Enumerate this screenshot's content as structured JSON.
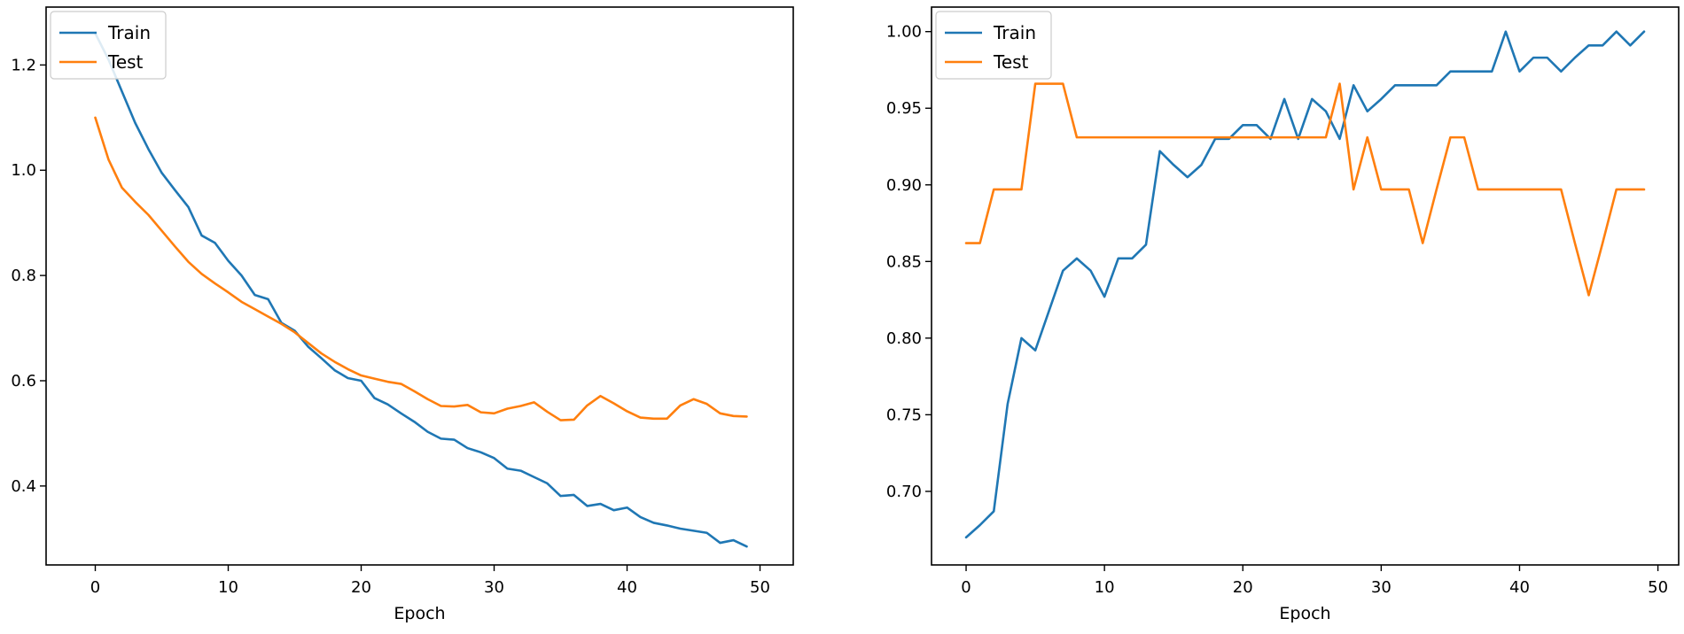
{
  "chart_data": [
    {
      "type": "line",
      "title": "",
      "xlabel": "Epoch",
      "ylabel": "",
      "xlim": [
        -3.7,
        52.5
      ],
      "ylim": [
        0.25,
        1.31
      ],
      "xticks": [
        0,
        10,
        20,
        30,
        40,
        50
      ],
      "yticks": [
        0.4,
        0.6,
        0.8,
        1.0,
        1.2
      ],
      "ytick_labels": [
        "0.4",
        "0.6",
        "0.8",
        "1.0",
        "1.2"
      ],
      "grid": false,
      "legend_position": "upper-left",
      "x": [
        0,
        1,
        2,
        3,
        4,
        5,
        6,
        7,
        8,
        9,
        10,
        11,
        12,
        13,
        14,
        15,
        16,
        17,
        18,
        19,
        20,
        21,
        22,
        23,
        24,
        25,
        26,
        27,
        28,
        29,
        30,
        31,
        32,
        33,
        34,
        35,
        36,
        37,
        38,
        39,
        40,
        41,
        42,
        43,
        44,
        45,
        46,
        47,
        48,
        49
      ],
      "series": [
        {
          "name": "Train",
          "color": "#1f77b4",
          "values": [
            1.26,
            1.21,
            1.15,
            1.09,
            1.04,
            0.995,
            0.962,
            0.93,
            0.876,
            0.862,
            0.828,
            0.8,
            0.763,
            0.755,
            0.71,
            0.695,
            0.665,
            0.643,
            0.62,
            0.605,
            0.6,
            0.567,
            0.555,
            0.538,
            0.522,
            0.503,
            0.49,
            0.488,
            0.472,
            0.464,
            0.453,
            0.433,
            0.429,
            0.417,
            0.405,
            0.381,
            0.383,
            0.362,
            0.366,
            0.354,
            0.359,
            0.341,
            0.33,
            0.325,
            0.319,
            0.315,
            0.311,
            0.292,
            0.297,
            0.285
          ]
        },
        {
          "name": "Test",
          "color": "#ff7f0e",
          "values": [
            1.1,
            1.02,
            0.967,
            0.94,
            0.915,
            0.885,
            0.855,
            0.826,
            0.803,
            0.785,
            0.768,
            0.75,
            0.736,
            0.722,
            0.708,
            0.692,
            0.672,
            0.652,
            0.636,
            0.622,
            0.61,
            0.604,
            0.598,
            0.594,
            0.58,
            0.565,
            0.552,
            0.551,
            0.554,
            0.54,
            0.538,
            0.547,
            0.552,
            0.559,
            0.541,
            0.525,
            0.526,
            0.553,
            0.571,
            0.557,
            0.542,
            0.53,
            0.528,
            0.528,
            0.553,
            0.565,
            0.556,
            0.538,
            0.533,
            0.532
          ]
        }
      ]
    },
    {
      "type": "line",
      "title": "",
      "xlabel": "Epoch",
      "ylabel": "",
      "xlim": [
        -2.5,
        51.5
      ],
      "ylim": [
        0.652,
        1.016
      ],
      "xticks": [
        0,
        10,
        20,
        30,
        40,
        50
      ],
      "yticks": [
        0.7,
        0.75,
        0.8,
        0.85,
        0.9,
        0.95,
        1.0
      ],
      "ytick_labels": [
        "0.70",
        "0.75",
        "0.80",
        "0.85",
        "0.90",
        "0.95",
        "1.00"
      ],
      "grid": false,
      "legend_position": "upper-left",
      "x": [
        0,
        1,
        2,
        3,
        4,
        5,
        6,
        7,
        8,
        9,
        10,
        11,
        12,
        13,
        14,
        15,
        16,
        17,
        18,
        19,
        20,
        21,
        22,
        23,
        24,
        25,
        26,
        27,
        28,
        29,
        30,
        31,
        32,
        33,
        34,
        35,
        36,
        37,
        38,
        39,
        40,
        41,
        42,
        43,
        44,
        45,
        46,
        47,
        48,
        49
      ],
      "series": [
        {
          "name": "Train",
          "color": "#1f77b4",
          "values": [
            0.67,
            0.678,
            0.687,
            0.757,
            0.8,
            0.792,
            0.818,
            0.844,
            0.852,
            0.844,
            0.827,
            0.852,
            0.852,
            0.861,
            0.922,
            0.913,
            0.905,
            0.913,
            0.93,
            0.93,
            0.939,
            0.939,
            0.93,
            0.956,
            0.93,
            0.956,
            0.948,
            0.93,
            0.965,
            0.948,
            0.956,
            0.965,
            0.965,
            0.965,
            0.965,
            0.974,
            0.974,
            0.974,
            0.974,
            1.0,
            0.974,
            0.983,
            0.983,
            0.974,
            0.983,
            0.991,
            0.991,
            1.0,
            0.991,
            1.0
          ]
        },
        {
          "name": "Test",
          "color": "#ff7f0e",
          "values": [
            0.862,
            0.862,
            0.897,
            0.897,
            0.897,
            0.966,
            0.966,
            0.966,
            0.931,
            0.931,
            0.931,
            0.931,
            0.931,
            0.931,
            0.931,
            0.931,
            0.931,
            0.931,
            0.931,
            0.931,
            0.931,
            0.931,
            0.931,
            0.931,
            0.931,
            0.931,
            0.931,
            0.966,
            0.897,
            0.931,
            0.897,
            0.897,
            0.897,
            0.862,
            0.897,
            0.931,
            0.931,
            0.897,
            0.897,
            0.897,
            0.897,
            0.897,
            0.897,
            0.897,
            0.862,
            0.828,
            0.862,
            0.897,
            0.897,
            0.897
          ]
        }
      ]
    }
  ]
}
